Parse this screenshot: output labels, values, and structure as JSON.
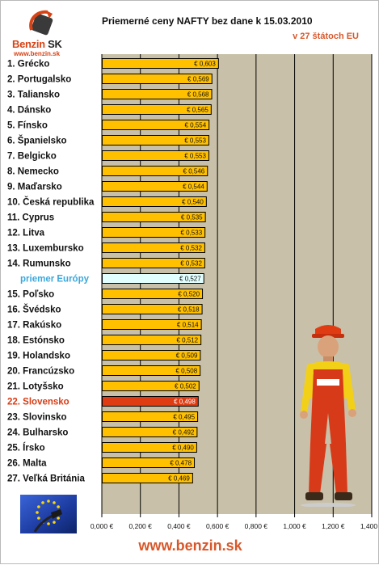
{
  "header": {
    "title": "Priemerné ceny NAFTY bez dane k 15.03.2010",
    "subtitle": "v 27 štátoch EU"
  },
  "logo": {
    "name_main": "Benzin",
    "name_suffix": "SK",
    "url": "www.benzin.sk"
  },
  "footer": {
    "url": "www.benzin.sk"
  },
  "colors": {
    "bar": "#ffc000",
    "highlight_bar": "#e03c14",
    "average_bar": "#e2ffff",
    "plot_background": "#c8c0a8",
    "average_label": "#3ba8dc",
    "highlight_label": "#d83c14"
  },
  "chart_data": {
    "type": "bar",
    "orientation": "horizontal",
    "title": "Priemerné ceny NAFTY bez dane k 15.03.2010",
    "subtitle": "v 27 štátoch EU",
    "xlim": [
      0,
      1.4
    ],
    "grid": true,
    "tick_labels": [
      "0,000 €",
      "0,200 €",
      "0,400 €",
      "0,600 €",
      "0,800 €",
      "1,000 €",
      "1,200 €",
      "1,400 €"
    ],
    "categories": [
      "1. Grécko",
      "2. Portugalsko",
      "3. Taliansko",
      "4. Dánsko",
      "5. Fínsko",
      "6. Španielsko",
      "7. Belgicko",
      "8. Nemecko",
      "9. Maďarsko",
      "10. Česká republika",
      "11. Cyprus",
      "12. Litva",
      "13. Luxembursko",
      "14. Rumunsko",
      "priemer Európy",
      "15. Poľsko",
      "16. Švédsko",
      "17. Rakúsko",
      "18. Estónsko",
      "19. Holandsko",
      "20. Francúzsko",
      "21. Lotyšsko",
      "22. Slovensko",
      "23. Slovinsko",
      "24. Bulharsko",
      "25. Írsko",
      "26. Malta",
      "27. Veľká Británia"
    ],
    "values": [
      0.603,
      0.569,
      0.568,
      0.565,
      0.554,
      0.553,
      0.553,
      0.546,
      0.544,
      0.54,
      0.535,
      0.533,
      0.532,
      0.532,
      0.527,
      0.52,
      0.518,
      0.514,
      0.512,
      0.509,
      0.508,
      0.502,
      0.498,
      0.495,
      0.492,
      0.49,
      0.478,
      0.469
    ],
    "value_labels": [
      "€ 0,603",
      "€ 0,569",
      "€ 0,568",
      "€ 0,565",
      "€ 0,554",
      "€ 0,553",
      "€ 0,553",
      "€ 0,546",
      "€ 0,544",
      "€ 0,540",
      "€ 0,535",
      "€ 0,533",
      "€ 0,532",
      "€ 0,532",
      "€ 0,527",
      "€ 0,520",
      "€ 0,518",
      "€ 0,514",
      "€ 0,512",
      "€ 0,509",
      "€ 0,508",
      "€ 0,502",
      "€ 0,498",
      "€ 0,495",
      "€ 0,492",
      "€ 0,490",
      "€ 0,478",
      "€ 0,469"
    ],
    "average_category": "priemer Európy",
    "highlight_category": "22. Slovensko"
  }
}
